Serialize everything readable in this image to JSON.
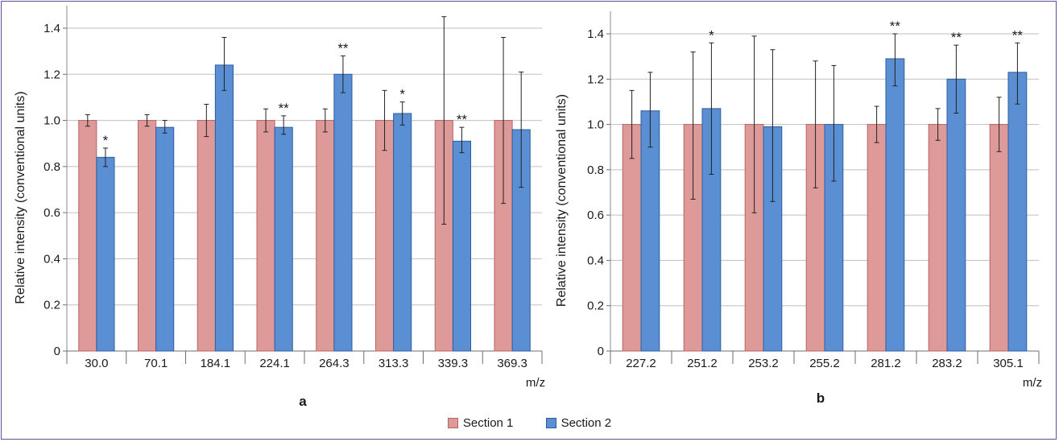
{
  "colors": {
    "section1": "#dd9a98",
    "section1_edge": "#b76462",
    "section2": "#5b8fd4",
    "section2_edge": "#2d5c9e",
    "grid": "#bfbfbf",
    "frame": "#6a4a9c"
  },
  "legend": {
    "section1": "Section 1",
    "section2": "Section 2"
  },
  "chart_data": [
    {
      "type": "bar",
      "panel_label": "a",
      "xlabel": "m/z",
      "ylabel": "Relative intensity (conventional units)",
      "ylim": [
        0,
        1.4
      ],
      "yticks": [
        "0",
        "0.2",
        "0.4",
        "0.6",
        "0.8",
        "1.0",
        "1.2",
        "1.4"
      ],
      "grid": true,
      "categories": [
        "30.0",
        "70.1",
        "184.1",
        "224.1",
        "264.3",
        "313.3",
        "339.3",
        "369.3"
      ],
      "series": [
        {
          "name": "Section 1",
          "values": [
            1.0,
            1.0,
            1.0,
            1.0,
            1.0,
            1.0,
            1.0,
            1.0
          ],
          "err_low": [
            0.975,
            0.975,
            0.93,
            0.95,
            0.95,
            0.87,
            0.55,
            0.64
          ],
          "err_high": [
            1.025,
            1.025,
            1.07,
            1.05,
            1.05,
            1.13,
            1.45,
            1.36
          ]
        },
        {
          "name": "Section 2",
          "values": [
            0.84,
            0.97,
            1.24,
            0.97,
            1.2,
            1.03,
            0.91,
            0.96
          ],
          "err_low": [
            0.8,
            0.945,
            1.13,
            0.94,
            1.12,
            0.98,
            0.86,
            0.71
          ],
          "err_high": [
            0.88,
            1.0,
            1.36,
            1.02,
            1.28,
            1.08,
            0.97,
            1.21
          ]
        }
      ],
      "significance": [
        "*",
        "",
        "",
        "**",
        "**",
        "*",
        "**",
        ""
      ]
    },
    {
      "type": "bar",
      "panel_label": "b",
      "xlabel": "m/z",
      "ylabel": "Relative intensity (conventional units)",
      "ylim": [
        0,
        1.4
      ],
      "yticks": [
        "0",
        "0.2",
        "0.4",
        "0.6",
        "0.8",
        "1.0",
        "1.2",
        "1.4"
      ],
      "grid": true,
      "categories": [
        "227.2",
        "251.2",
        "253.2",
        "255.2",
        "281.2",
        "283.2",
        "305.1"
      ],
      "series": [
        {
          "name": "Section 1",
          "values": [
            1.0,
            1.0,
            1.0,
            1.0,
            1.0,
            1.0,
            1.0
          ],
          "err_low": [
            0.85,
            0.67,
            0.61,
            0.72,
            0.92,
            0.93,
            0.88
          ],
          "err_high": [
            1.15,
            1.32,
            1.39,
            1.28,
            1.08,
            1.07,
            1.12
          ]
        },
        {
          "name": "Section 2",
          "values": [
            1.06,
            1.07,
            0.99,
            1.0,
            1.29,
            1.2,
            1.23
          ],
          "err_low": [
            0.9,
            0.78,
            0.66,
            0.75,
            1.17,
            1.05,
            1.09
          ],
          "err_high": [
            1.23,
            1.36,
            1.33,
            1.26,
            1.4,
            1.35,
            1.36
          ]
        }
      ],
      "significance": [
        "",
        "*",
        "",
        "",
        "**",
        "**",
        "**"
      ]
    }
  ]
}
